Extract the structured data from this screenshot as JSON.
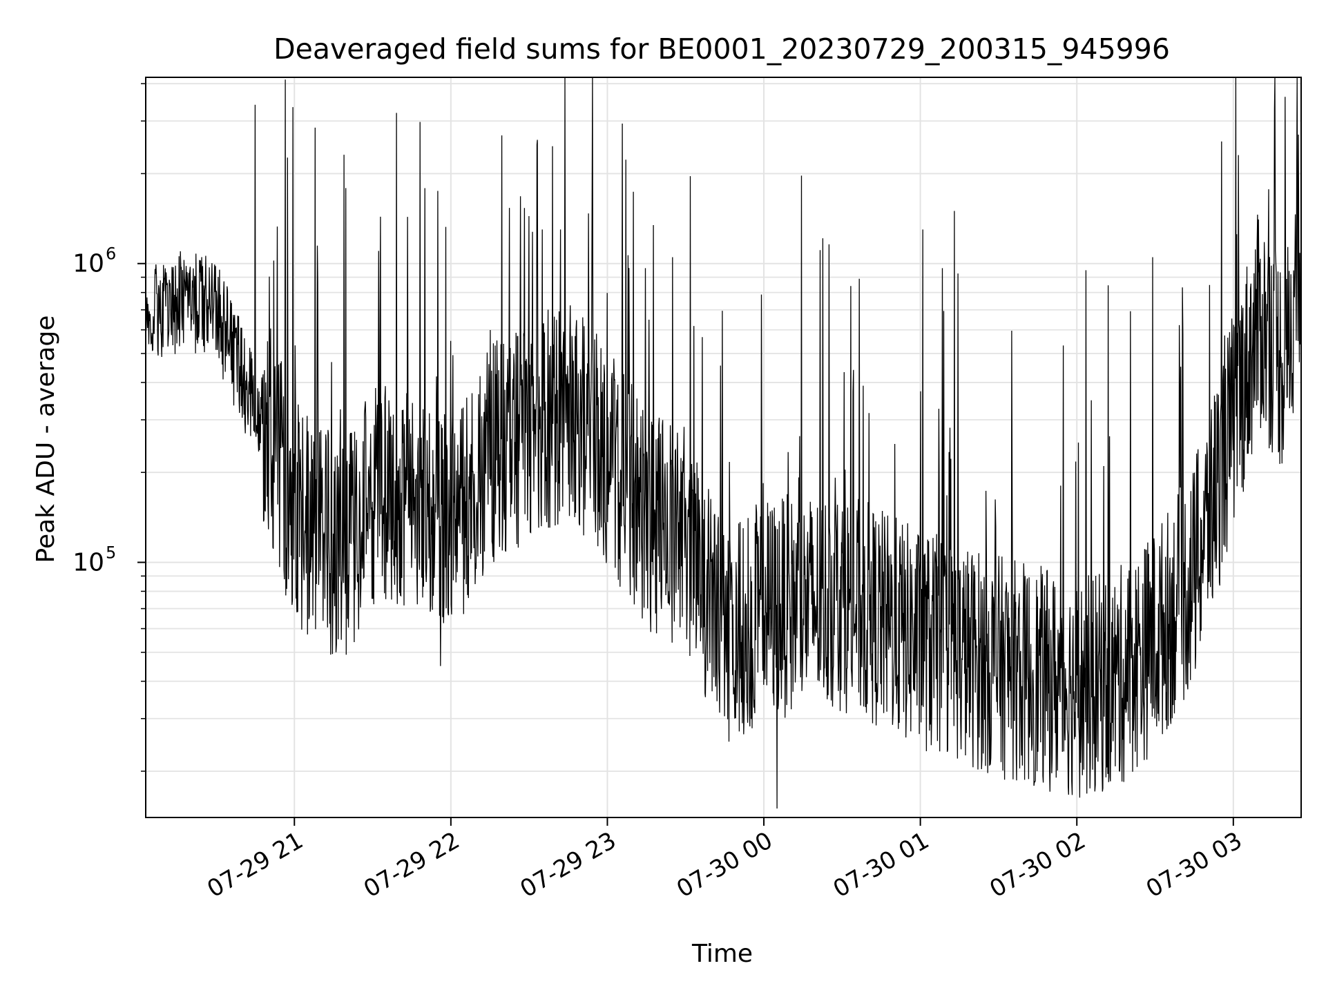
{
  "chart_data": {
    "type": "line",
    "title": "Deaveraged field sums for BE0001_20230729_200315_945996",
    "xlabel": "Time",
    "ylabel": "Peak ADU - average",
    "y_scale": "log",
    "ylim": [
      14000,
      4200000
    ],
    "xlim": [
      "2023-07-29 20:03",
      "2023-07-30 03:26"
    ],
    "x_ticks": [
      {
        "label": "07-29 21",
        "value": "2023-07-29 21:00"
      },
      {
        "label": "07-29 22",
        "value": "2023-07-29 22:00"
      },
      {
        "label": "07-29 23",
        "value": "2023-07-29 23:00"
      },
      {
        "label": "07-30 00",
        "value": "2023-07-30 00:00"
      },
      {
        "label": "07-30 01",
        "value": "2023-07-30 01:00"
      },
      {
        "label": "07-30 02",
        "value": "2023-07-30 02:00"
      },
      {
        "label": "07-30 03",
        "value": "2023-07-30 03:00"
      }
    ],
    "y_ticks": [
      {
        "base": "10",
        "exp": "5",
        "value": 100000
      },
      {
        "base": "10",
        "exp": "6",
        "value": 1000000
      }
    ],
    "grid": true,
    "line_color": "#000000",
    "series_profile": {
      "time": [
        "2023-07-29 20:03",
        "2023-07-29 20:20",
        "2023-07-29 20:30",
        "2023-07-29 20:40",
        "2023-07-29 20:50",
        "2023-07-29 21:00",
        "2023-07-29 21:10",
        "2023-07-29 21:20",
        "2023-07-29 21:30",
        "2023-07-29 21:45",
        "2023-07-29 22:00",
        "2023-07-29 22:15",
        "2023-07-29 22:30",
        "2023-07-29 22:45",
        "2023-07-29 23:00",
        "2023-07-29 23:15",
        "2023-07-29 23:30",
        "2023-07-29 23:45",
        "2023-07-30 00:00",
        "2023-07-30 00:30",
        "2023-07-30 01:00",
        "2023-07-30 01:30",
        "2023-07-30 02:00",
        "2023-07-30 02:15",
        "2023-07-30 02:30",
        "2023-07-30 02:45",
        "2023-07-30 03:00",
        "2023-07-30 03:10",
        "2023-07-30 03:20",
        "2023-07-30 03:26"
      ],
      "typical_value": [
        700000,
        750000,
        700000,
        420000,
        270000,
        150000,
        120000,
        110000,
        170000,
        160000,
        130000,
        230000,
        280000,
        330000,
        230000,
        140000,
        120000,
        55000,
        70000,
        75000,
        55000,
        45000,
        38000,
        40000,
        55000,
        90000,
        300000,
        650000,
        450000,
        1200000
      ],
      "peaks": [
        {
          "time": "2023-07-29 20:45",
          "value": 3400000
        },
        {
          "time": "2023-07-29 21:08",
          "value": 2850000
        },
        {
          "time": "2023-07-29 21:55",
          "value": 1750000
        },
        {
          "time": "2023-07-29 22:35",
          "value": 1300000
        },
        {
          "time": "2023-07-29 22:42",
          "value": 1300000
        },
        {
          "time": "2023-07-29 23:25",
          "value": 1050000
        },
        {
          "time": "2023-07-30 01:01",
          "value": 1300000
        },
        {
          "time": "2023-07-30 01:13",
          "value": 1500000
        },
        {
          "time": "2023-07-30 02:29",
          "value": 1050000
        },
        {
          "time": "2023-07-30 03:25",
          "value": 2700000
        }
      ],
      "troughs": [
        {
          "time": "2023-07-29 21:16",
          "value": 50000
        },
        {
          "time": "2023-07-29 21:56",
          "value": 45000
        },
        {
          "time": "2023-07-30 00:05",
          "value": 15000
        },
        {
          "time": "2023-07-30 02:07",
          "value": 18000
        }
      ]
    }
  }
}
